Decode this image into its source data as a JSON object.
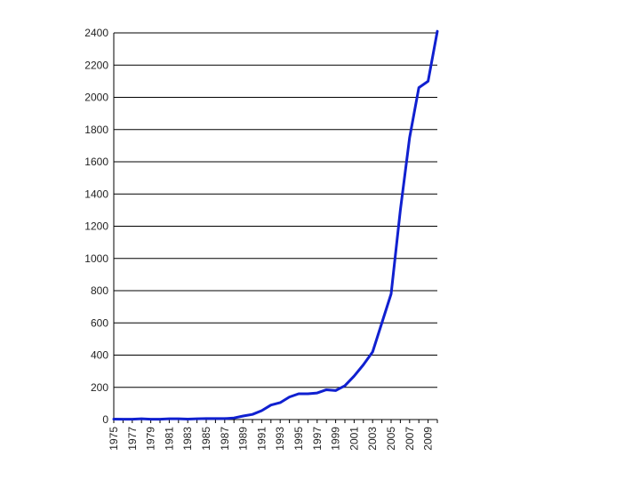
{
  "chart_data": {
    "type": "line",
    "title": "",
    "xlabel": "",
    "ylabel": "",
    "ylim": [
      0,
      2400
    ],
    "yticks": [
      0,
      200,
      400,
      600,
      800,
      1000,
      1200,
      1400,
      1600,
      1800,
      2000,
      2200,
      2400
    ],
    "xlim": [
      1975,
      2010
    ],
    "xtick_labels": [
      "1975",
      "1977",
      "1979",
      "1981",
      "1983",
      "1985",
      "1987",
      "1989",
      "1991",
      "1993",
      "1995",
      "1997",
      "1999",
      "2001",
      "2003",
      "2005",
      "2007",
      "2009"
    ],
    "grid": "horizontal",
    "legend": "none",
    "series": [
      {
        "color": "#1020d0",
        "x": [
          1975,
          1976,
          1977,
          1978,
          1979,
          1980,
          1981,
          1982,
          1983,
          1984,
          1985,
          1986,
          1987,
          1988,
          1989,
          1990,
          1991,
          1992,
          1993,
          1994,
          1995,
          1996,
          1997,
          1998,
          1999,
          2000,
          2001,
          2002,
          2003,
          2004,
          2005,
          2006,
          2007,
          2008,
          2009,
          2010
        ],
        "y": [
          3,
          2,
          2,
          5,
          2,
          2,
          5,
          5,
          3,
          5,
          6,
          6,
          6,
          10,
          22,
          32,
          55,
          90,
          105,
          140,
          160,
          160,
          165,
          185,
          180,
          210,
          270,
          340,
          420,
          600,
          780,
          1300,
          1750,
          2060,
          2100,
          2410
        ]
      }
    ]
  }
}
